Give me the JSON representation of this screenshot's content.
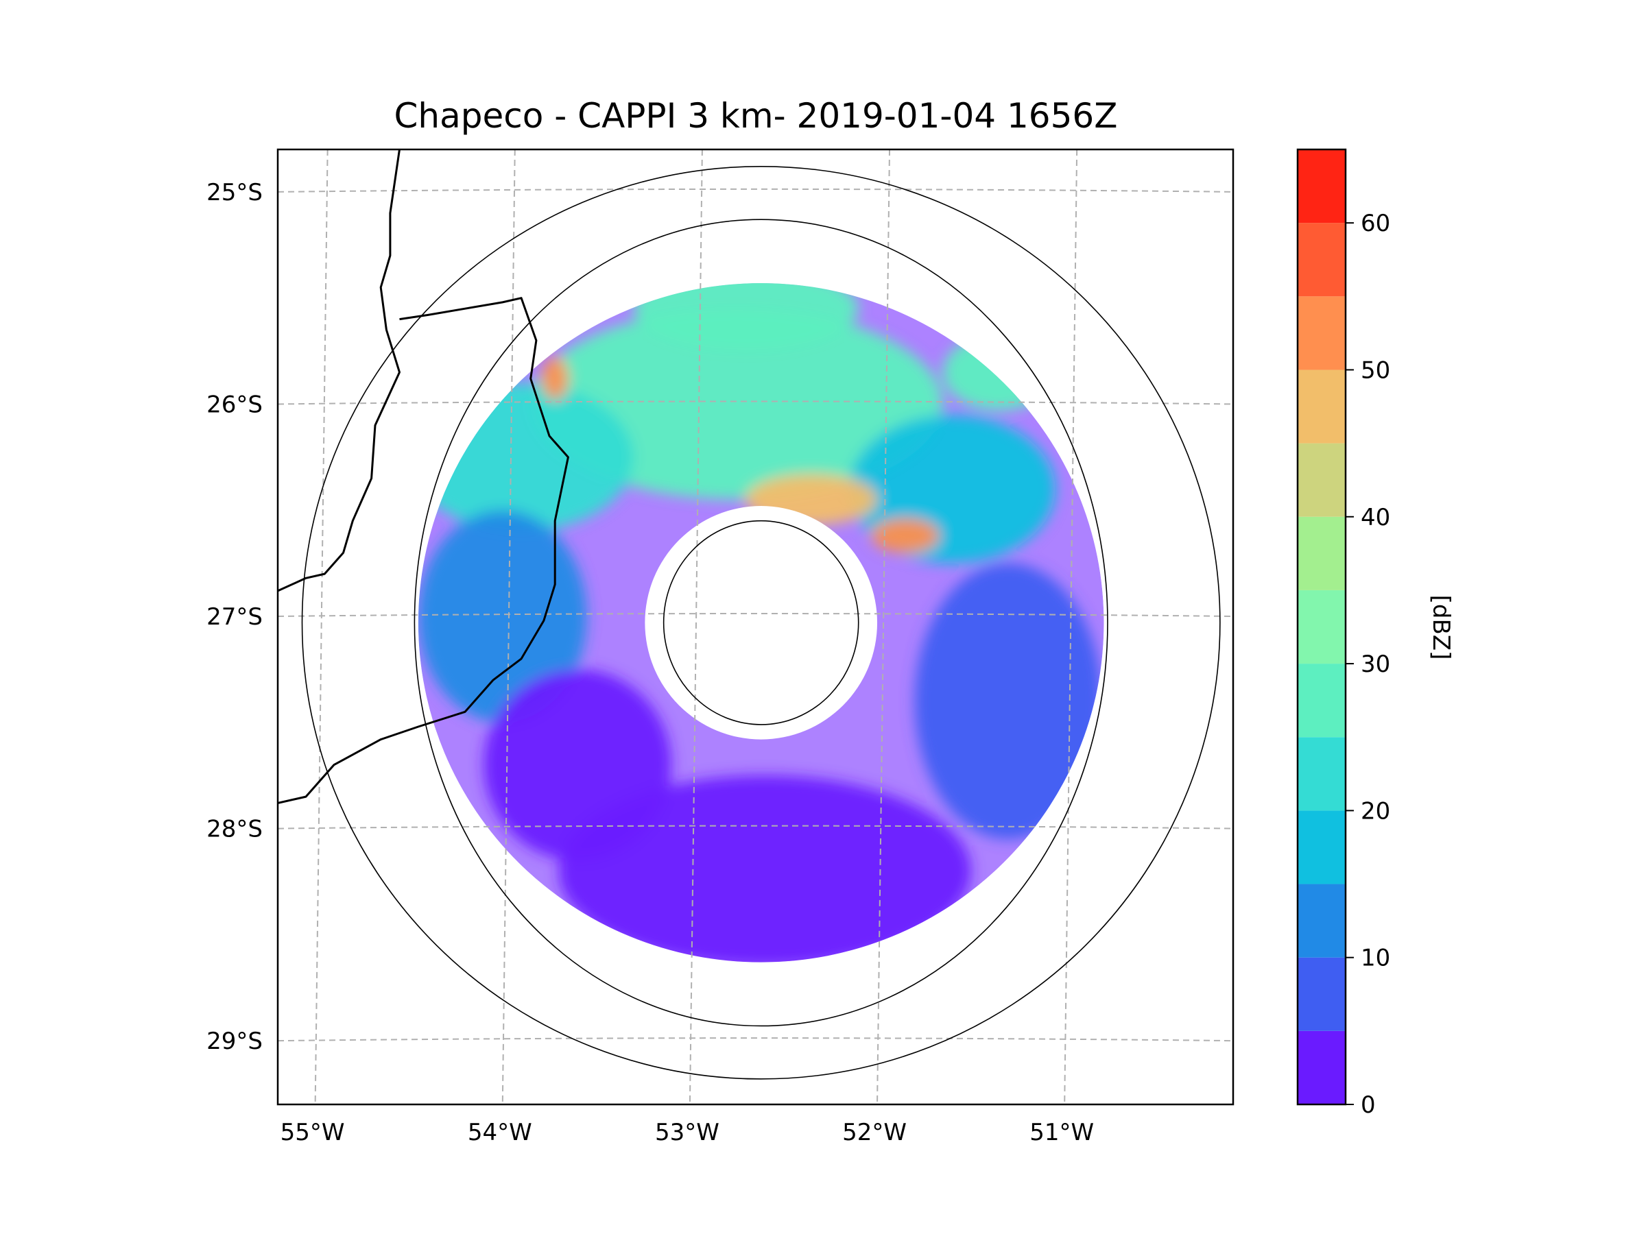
{
  "title": "Chapeco - CAPPI 3 km- 2019-01-04 1656Z",
  "map": {
    "lon_range": [
      -55.2,
      -50.1
    ],
    "lat_range": [
      -29.3,
      -24.8
    ],
    "radar_center": {
      "lon": -52.62,
      "lat": -27.03
    },
    "range_rings": [
      {
        "name": "ring-inner",
        "rx_deg": 0.52,
        "ry_deg": 0.48
      },
      {
        "name": "ring-middle",
        "rx_deg": 1.85,
        "ry_deg": 1.9
      },
      {
        "name": "ring-outer",
        "rx_deg": 2.45,
        "ry_deg": 2.15
      }
    ],
    "data_coverage": {
      "rx_deg": 1.83,
      "ry_deg": 1.6,
      "inner_clear_rx_deg": 0.62,
      "inner_clear_ry_deg": 0.55
    },
    "lon_ticks": [
      {
        "value": -55,
        "label": "55°W"
      },
      {
        "value": -54,
        "label": "54°W"
      },
      {
        "value": -53,
        "label": "53°W"
      },
      {
        "value": -52,
        "label": "52°W"
      },
      {
        "value": -51,
        "label": "51°W"
      }
    ],
    "lat_ticks": [
      {
        "value": -25,
        "label": "25°S"
      },
      {
        "value": -26,
        "label": "26°S"
      },
      {
        "value": -27,
        "label": "27°S"
      },
      {
        "value": -28,
        "label": "28°S"
      },
      {
        "value": -29,
        "label": "29°S"
      }
    ],
    "gridlines": "dashed"
  },
  "colorbar": {
    "label": "[dBZ]",
    "min": 0,
    "max": 65,
    "step": 5,
    "ticks": [
      0,
      10,
      20,
      30,
      40,
      50,
      60
    ],
    "levels": [
      {
        "from": 0,
        "to": 5,
        "color": "#6a1bff"
      },
      {
        "from": 5,
        "to": 10,
        "color": "#3f5ef2"
      },
      {
        "from": 10,
        "to": 15,
        "color": "#218ae6"
      },
      {
        "from": 15,
        "to": 20,
        "color": "#10c0e0"
      },
      {
        "from": 20,
        "to": 25,
        "color": "#34dcd4"
      },
      {
        "from": 25,
        "to": 30,
        "color": "#5defc0"
      },
      {
        "from": 30,
        "to": 35,
        "color": "#82f6ad"
      },
      {
        "from": 35,
        "to": 40,
        "color": "#a3ef8f"
      },
      {
        "from": 40,
        "to": 45,
        "color": "#cdd47e"
      },
      {
        "from": 45,
        "to": 50,
        "color": "#f2be6a"
      },
      {
        "from": 50,
        "to": 55,
        "color": "#ff8f4f"
      },
      {
        "from": 55,
        "to": 60,
        "color": "#ff5b33"
      },
      {
        "from": 60,
        "to": 65,
        "color": "#ff2414"
      }
    ]
  },
  "echo_regions": [
    {
      "name": "north-band-main",
      "lon": -52.75,
      "lat": -26.0,
      "rx": 1.1,
      "ry": 0.45,
      "dbz": 25
    },
    {
      "name": "north-band-west",
      "lon": -53.9,
      "lat": -26.25,
      "rx": 0.6,
      "ry": 0.35,
      "dbz": 20
    },
    {
      "name": "north-band-east",
      "lon": -51.6,
      "lat": -26.4,
      "rx": 0.55,
      "ry": 0.35,
      "dbz": 15
    },
    {
      "name": "northeast-cell",
      "lon": -51.35,
      "lat": -25.85,
      "rx": 0.3,
      "ry": 0.18,
      "dbz": 25
    },
    {
      "name": "far-north-cells",
      "lon": -52.7,
      "lat": -25.55,
      "rx": 0.6,
      "ry": 0.2,
      "dbz": 28
    },
    {
      "name": "squall-core",
      "lon": -52.35,
      "lat": -26.45,
      "rx": 0.35,
      "ry": 0.12,
      "dbz": 45
    },
    {
      "name": "squall-core-east",
      "lon": -51.85,
      "lat": -26.62,
      "rx": 0.18,
      "ry": 0.08,
      "dbz": 50
    },
    {
      "name": "northwest-core",
      "lon": -53.72,
      "lat": -25.88,
      "rx": 0.07,
      "ry": 0.1,
      "dbz": 50
    },
    {
      "name": "west-shelf",
      "lon": -54.0,
      "lat": -27.0,
      "rx": 0.45,
      "ry": 0.5,
      "dbz": 10
    },
    {
      "name": "east-shelf",
      "lon": -51.3,
      "lat": -27.4,
      "rx": 0.5,
      "ry": 0.65,
      "dbz": 8
    },
    {
      "name": "south-ring",
      "lon": -52.6,
      "lat": -28.2,
      "rx": 1.1,
      "ry": 0.45,
      "dbz": 2
    },
    {
      "name": "southwest-patch",
      "lon": -53.6,
      "lat": -27.7,
      "rx": 0.5,
      "ry": 0.45,
      "dbz": 3
    }
  ],
  "borders": [
    {
      "name": "country-border-north",
      "points": [
        [
          -54.55,
          -24.8
        ],
        [
          -54.6,
          -25.1
        ],
        [
          -54.6,
          -25.3
        ],
        [
          -54.65,
          -25.45
        ],
        [
          -54.62,
          -25.65
        ],
        [
          -54.55,
          -25.85
        ],
        [
          -54.68,
          -26.1
        ],
        [
          -54.7,
          -26.35
        ],
        [
          -54.8,
          -26.55
        ],
        [
          -54.85,
          -26.7
        ],
        [
          -54.95,
          -26.8
        ],
        [
          -55.05,
          -26.82
        ],
        [
          -55.2,
          -26.88
        ]
      ]
    },
    {
      "name": "state-border-west",
      "points": [
        [
          -54.55,
          -25.6
        ],
        [
          -54.4,
          -25.58
        ],
        [
          -54.2,
          -25.55
        ],
        [
          -54.0,
          -25.52
        ],
        [
          -53.9,
          -25.5
        ],
        [
          -53.82,
          -25.7
        ],
        [
          -53.85,
          -25.88
        ],
        [
          -53.75,
          -26.15
        ],
        [
          -53.65,
          -26.25
        ],
        [
          -53.72,
          -26.55
        ],
        [
          -53.72,
          -26.85
        ],
        [
          -53.78,
          -27.02
        ],
        [
          -53.9,
          -27.2
        ],
        [
          -54.05,
          -27.3
        ],
        [
          -54.2,
          -27.45
        ],
        [
          -54.45,
          -27.52
        ],
        [
          -54.65,
          -27.58
        ],
        [
          -54.9,
          -27.7
        ],
        [
          -55.05,
          -27.85
        ],
        [
          -55.2,
          -27.88
        ]
      ]
    }
  ]
}
